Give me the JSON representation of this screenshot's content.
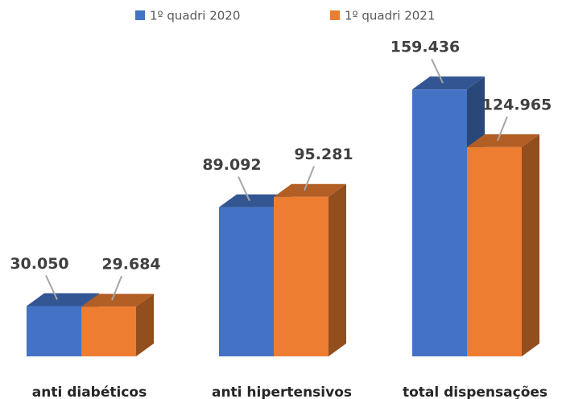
{
  "chart_data": {
    "type": "bar3d",
    "categories": [
      "anti diabéticos",
      "anti hipertensivos",
      "total dispensações"
    ],
    "series": [
      {
        "name": "1º quadri 2020",
        "color": "#4472c4",
        "values": [
          30050,
          89092,
          159436
        ],
        "value_labels": [
          "30.050",
          "89.092",
          "159.436"
        ]
      },
      {
        "name": "1º quadri 2021",
        "color": "#ed7d31",
        "values": [
          29684,
          95281,
          124965
        ],
        "value_labels": [
          "29.684",
          "95.281",
          "124.965"
        ]
      }
    ],
    "legend": "top"
  }
}
